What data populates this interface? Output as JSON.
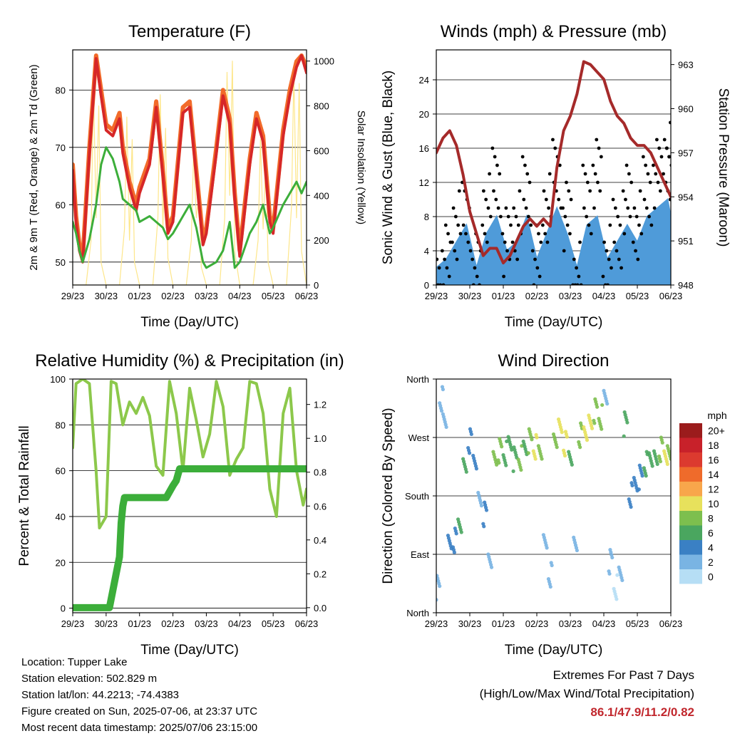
{
  "chart_data": [
    {
      "id": "temperature",
      "type": "line",
      "title": "Temperature (F)",
      "xlabel": "Time (Day/UTC)",
      "ylabel": "2m & 9m T (Red, Orange) & 2m Td (Green)",
      "y2label": "Solar Insolation (Yellow)",
      "x_ticks": [
        "29/23",
        "30/23",
        "01/23",
        "02/23",
        "03/23",
        "04/23",
        "05/23",
        "06/23"
      ],
      "ylim": [
        46,
        87
      ],
      "y_ticks": [
        50,
        60,
        70,
        80
      ],
      "y2lim": [
        0,
        1050
      ],
      "y2_ticks": [
        0,
        200,
        400,
        600,
        800,
        1000
      ],
      "grid": true,
      "series": [
        {
          "color": "#fde68a",
          "axis": "y2",
          "x": [
            0,
            0.4,
            0.55,
            0.62,
            0.7,
            0.78,
            0.85,
            1.0,
            1.4,
            1.55,
            1.62,
            1.7,
            1.78,
            1.85,
            2.0,
            2.4,
            2.55,
            2.62,
            2.7,
            2.78,
            2.85,
            3.0,
            3.4,
            3.55,
            3.62,
            3.7,
            3.78,
            3.85,
            4.0,
            4.4,
            4.55,
            4.62,
            4.7,
            4.78,
            4.85,
            5.0,
            5.4,
            5.55,
            5.62,
            5.7,
            5.78,
            5.85,
            6.0,
            6.4,
            6.55,
            6.62,
            6.7,
            6.78,
            6.85,
            7.0
          ],
          "y": [
            0,
            0,
            200,
            900,
            300,
            800,
            100,
            0,
            0,
            250,
            750,
            200,
            650,
            100,
            0,
            0,
            300,
            850,
            250,
            700,
            120,
            0,
            0,
            200,
            600,
            300,
            400,
            80,
            0,
            0,
            300,
            950,
            400,
            1000,
            150,
            0,
            0,
            200,
            650,
            250,
            550,
            100,
            0,
            0,
            350,
            950,
            300,
            900,
            150,
            0
          ]
        },
        {
          "color": "#f26b2a",
          "x": [
            0,
            0.1,
            0.2,
            0.3,
            0.5,
            0.7,
            0.85,
            1.0,
            1.2,
            1.4,
            1.5,
            1.7,
            1.9,
            2.0,
            2.3,
            2.5,
            2.7,
            2.85,
            3.0,
            3.3,
            3.5,
            3.7,
            3.9,
            4.0,
            4.3,
            4.5,
            4.7,
            4.85,
            5.0,
            5.3,
            5.5,
            5.7,
            5.9,
            6.0,
            6.3,
            6.5,
            6.7,
            6.85,
            7.0
          ],
          "y": [
            67,
            58,
            53,
            51,
            70,
            86,
            80,
            74,
            73,
            76,
            70,
            64,
            60,
            63,
            68,
            78,
            66,
            56,
            58,
            77,
            78,
            66,
            54,
            56,
            70,
            80,
            75,
            62,
            52,
            68,
            76,
            72,
            58,
            56,
            73,
            80,
            85,
            86,
            84
          ]
        },
        {
          "color": "#d62728",
          "x": [
            0,
            0.1,
            0.2,
            0.3,
            0.5,
            0.7,
            0.85,
            1.0,
            1.2,
            1.4,
            1.5,
            1.7,
            1.9,
            2.0,
            2.3,
            2.5,
            2.7,
            2.85,
            3.0,
            3.3,
            3.5,
            3.7,
            3.9,
            4.0,
            4.3,
            4.5,
            4.7,
            4.85,
            5.0,
            5.3,
            5.5,
            5.7,
            5.9,
            6.0,
            6.3,
            6.5,
            6.7,
            6.85,
            7.0
          ],
          "y": [
            66,
            57,
            52,
            50,
            69,
            85.5,
            79,
            73,
            72,
            75,
            69,
            63,
            59,
            62,
            67,
            77,
            65,
            55,
            57,
            76,
            77,
            65,
            53,
            55,
            69,
            79,
            74,
            61,
            51,
            67,
            75,
            71,
            57,
            55,
            72,
            79,
            84,
            86,
            83
          ]
        },
        {
          "color": "#3cae3a",
          "x": [
            0,
            0.1,
            0.2,
            0.3,
            0.5,
            0.7,
            0.85,
            1.0,
            1.2,
            1.4,
            1.5,
            1.7,
            1.9,
            2.0,
            2.3,
            2.5,
            2.7,
            2.85,
            3.0,
            3.3,
            3.5,
            3.7,
            3.9,
            4.0,
            4.3,
            4.5,
            4.7,
            4.85,
            5.0,
            5.3,
            5.5,
            5.7,
            5.9,
            6.0,
            6.3,
            6.5,
            6.7,
            6.85,
            7.0
          ],
          "y": [
            57,
            55,
            52,
            50,
            54,
            60,
            67,
            70,
            68,
            64,
            61,
            60,
            59,
            57,
            58,
            57,
            56,
            54,
            55,
            58,
            60,
            56,
            50,
            49,
            50,
            52,
            57,
            49,
            50,
            55,
            57,
            60,
            55,
            56,
            60,
            62,
            64,
            62,
            64
          ]
        }
      ]
    },
    {
      "id": "winds",
      "type": "scatter",
      "title": "Winds (mph) & Pressure (mb)",
      "xlabel": "Time (Day/UTC)",
      "ylabel": "Sonic Wind & Gust (Blue, Black)",
      "y2label": "Station Pressure (Maroon)",
      "x_ticks": [
        "29/23",
        "30/23",
        "01/23",
        "02/23",
        "03/23",
        "04/23",
        "05/23",
        "06/23"
      ],
      "ylim": [
        0,
        27.5
      ],
      "y_ticks": [
        0,
        4,
        8,
        12,
        16,
        20,
        24
      ],
      "y2lim": [
        948,
        964
      ],
      "y2_ticks": [
        948,
        951,
        954,
        957,
        960,
        963
      ],
      "grid": true,
      "series": [
        {
          "color": "#4f9bd9",
          "mode": "band",
          "x": [
            0,
            0.3,
            0.6,
            0.9,
            1.2,
            1.5,
            1.8,
            2.1,
            2.4,
            2.7,
            3.0,
            3.3,
            3.6,
            3.9,
            4.2,
            4.5,
            4.8,
            5.1,
            5.4,
            5.7,
            6.0,
            6.3,
            6.6,
            6.9,
            7.0
          ],
          "y": [
            2,
            3,
            5,
            7,
            2,
            6,
            8,
            4,
            5,
            8,
            3,
            6,
            9,
            6,
            2,
            7,
            8,
            3,
            5,
            7,
            5,
            8,
            9,
            10,
            8
          ]
        },
        {
          "color": "#000000",
          "mode": "dots",
          "x": [
            0,
            0.3,
            0.6,
            0.9,
            1.2,
            1.5,
            1.8,
            2.1,
            2.4,
            2.7,
            3.0,
            3.3,
            3.6,
            3.9,
            4.2,
            4.5,
            4.8,
            5.1,
            5.4,
            5.7,
            6.0,
            6.3,
            6.6,
            6.9,
            7.0
          ],
          "y": [
            5,
            7,
            11,
            12,
            6,
            13,
            16,
            9,
            11,
            15,
            7,
            13,
            17,
            12,
            5,
            14,
            17,
            7,
            10,
            14,
            11,
            15,
            17,
            19,
            16
          ]
        },
        {
          "color": "#a52a2a",
          "axis": "y2",
          "x": [
            0,
            0.2,
            0.4,
            0.6,
            0.8,
            1.0,
            1.2,
            1.4,
            1.6,
            1.8,
            2.0,
            2.2,
            2.4,
            2.6,
            2.8,
            3.0,
            3.2,
            3.4,
            3.6,
            3.8,
            4.0,
            4.2,
            4.4,
            4.6,
            4.8,
            5.0,
            5.2,
            5.4,
            5.6,
            5.8,
            6.0,
            6.2,
            6.4,
            6.6,
            6.8,
            7.0
          ],
          "y": [
            957,
            958,
            958.5,
            957.5,
            955.5,
            953,
            951.5,
            950,
            950.5,
            950.5,
            949.5,
            950,
            951,
            952,
            952.5,
            952,
            952.5,
            952,
            956,
            958.5,
            959.5,
            961,
            963.2,
            963,
            962.5,
            962,
            960.5,
            959.5,
            959,
            958,
            957.5,
            957.5,
            957,
            956,
            955,
            954
          ]
        }
      ]
    },
    {
      "id": "humidity",
      "type": "line",
      "title": "Relative Humidity (%) & Precipitation (in)",
      "xlabel": "Time (Day/UTC)",
      "ylabel": "Percent & Total Rainfall",
      "x_ticks": [
        "29/23",
        "30/23",
        "01/23",
        "02/23",
        "03/23",
        "04/23",
        "05/23",
        "06/23"
      ],
      "ylim": [
        -2,
        100
      ],
      "y_ticks": [
        0,
        20,
        40,
        60,
        80,
        100
      ],
      "y2lim": [
        -0.03,
        1.35
      ],
      "y2_ticks": [
        "0.0",
        "0.2",
        "0.4",
        "0.6",
        "0.8",
        "1.0",
        "1.2"
      ],
      "grid": true,
      "series": [
        {
          "color": "#8cc84b",
          "x": [
            0,
            0.1,
            0.3,
            0.5,
            0.7,
            0.8,
            1.0,
            1.15,
            1.3,
            1.5,
            1.7,
            1.9,
            2.1,
            2.3,
            2.5,
            2.7,
            2.9,
            3.1,
            3.3,
            3.5,
            3.7,
            3.9,
            4.1,
            4.3,
            4.5,
            4.7,
            4.9,
            5.1,
            5.3,
            5.5,
            5.7,
            5.9,
            6.1,
            6.3,
            6.5,
            6.7,
            6.9,
            7.0
          ],
          "y": [
            70,
            98,
            100,
            98,
            60,
            35,
            40,
            99,
            98,
            80,
            90,
            85,
            92,
            84,
            62,
            58,
            99,
            85,
            60,
            96,
            82,
            66,
            76,
            99,
            88,
            58,
            65,
            70,
            99,
            98,
            85,
            52,
            40,
            85,
            96,
            60,
            45,
            52
          ]
        },
        {
          "color": "#3cae3a",
          "axis": "y2",
          "x": [
            0,
            0.6,
            1.1,
            1.3,
            1.4,
            1.45,
            1.5,
            1.55,
            2.6,
            2.8,
            3.0,
            3.1,
            3.2,
            3.5,
            7.0
          ],
          "y": [
            0,
            0,
            0,
            0.2,
            0.3,
            0.5,
            0.6,
            0.65,
            0.65,
            0.65,
            0.72,
            0.75,
            0.82,
            0.82,
            0.82
          ]
        }
      ]
    },
    {
      "id": "direction",
      "type": "scatter",
      "title": "Wind Direction",
      "xlabel": "Time (Day/UTC)",
      "ylabel": "Direction (Colored By Speed)",
      "x_ticks": [
        "29/23",
        "30/23",
        "01/23",
        "02/23",
        "03/23",
        "04/23",
        "05/23",
        "06/23"
      ],
      "y_ticks": [
        "North",
        "East",
        "South",
        "West",
        "North"
      ],
      "ylim": [
        0,
        360
      ],
      "grid": true,
      "legend": {
        "title": "mph",
        "labels": [
          "20+",
          "18",
          "16",
          "14",
          "12",
          "10",
          "8",
          "6",
          "4",
          "2",
          "0"
        ],
        "colors": [
          "#9b1c1c",
          "#c8212a",
          "#dc3a2f",
          "#ef6b2b",
          "#f8a64b",
          "#e7e15c",
          "#7dbf4e",
          "#4aa65f",
          "#3a80c4",
          "#79b4e3",
          "#b6def5"
        ]
      },
      "series": [
        {
          "name": "direction",
          "x": [
            0.05,
            0.15,
            0.25,
            0.4,
            0.55,
            0.7,
            0.85,
            1.0,
            1.15,
            1.3,
            1.45,
            1.6,
            1.75,
            1.9,
            2.05,
            2.2,
            2.35,
            2.5,
            2.65,
            2.8,
            2.95,
            3.1,
            3.25,
            3.4,
            3.55,
            3.7,
            3.85,
            4.0,
            4.15,
            4.3,
            4.45,
            4.6,
            4.75,
            4.9,
            5.05,
            5.2,
            5.35,
            5.5,
            5.65,
            5.8,
            5.95,
            6.1,
            6.25,
            6.4,
            6.55,
            6.7,
            6.85,
            6.95
          ],
          "y": [
            40,
            330,
            300,
            100,
            110,
            140,
            220,
            265,
            240,
            170,
            150,
            90,
            235,
            250,
            245,
            260,
            235,
            240,
            255,
            265,
            255,
            250,
            100,
            60,
            270,
            280,
            260,
            245,
            100,
            275,
            285,
            290,
            310,
            300,
            330,
            80,
            40,
            60,
            290,
            180,
            200,
            210,
            230,
            240,
            230,
            250,
            245,
            240
          ],
          "speeds": [
            1,
            2,
            1,
            4,
            3,
            5,
            6,
            3,
            4,
            2,
            3,
            1,
            7,
            8,
            6,
            5,
            6,
            7,
            6,
            8,
            9,
            7,
            1,
            1,
            8,
            9,
            9,
            6,
            1,
            8,
            9,
            9,
            8,
            7,
            1,
            1,
            0,
            1,
            6,
            4,
            3,
            4,
            5,
            6,
            6,
            8,
            9,
            8
          ]
        }
      ]
    }
  ],
  "footer": {
    "location": "Location: Tupper Lake",
    "elevation": "Station elevation: 502.829 m",
    "latlon": "Station lat/lon: 44.2213; -74.4383",
    "created": "Figure created on Sun, 2025-07-06, at 23:37 UTC",
    "timestamp": "Most recent data timestamp: 2025/07/06 23:15:00",
    "extremes_title": "Extremes For Past 7 Days",
    "extremes_subtitle": "(High/Low/Max Wind/Total Precipitation)",
    "extremes_value": "86.1/47.9/11.2/0.82"
  }
}
